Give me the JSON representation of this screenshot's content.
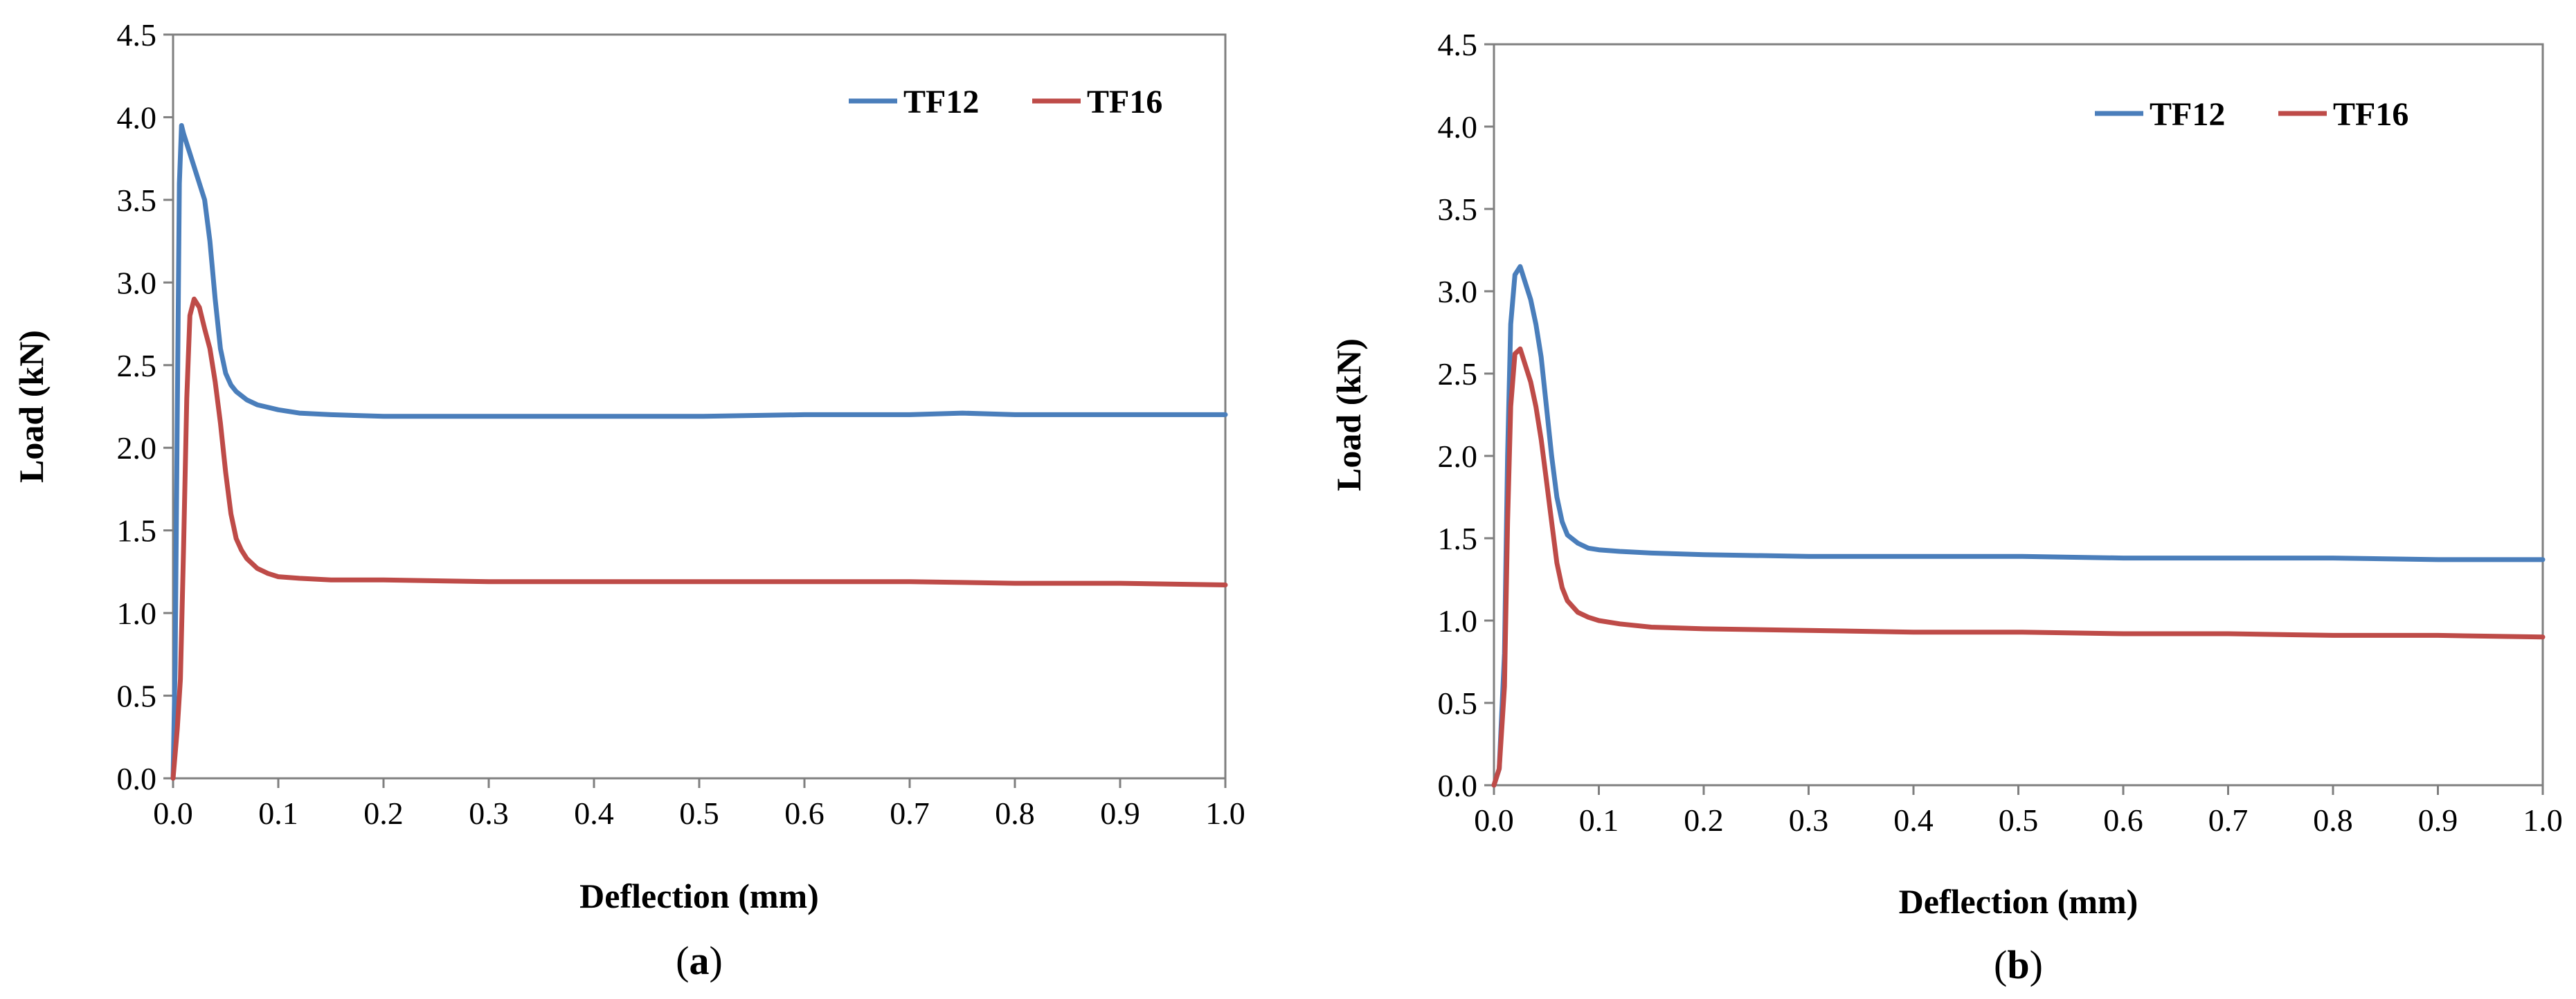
{
  "chart_data": [
    {
      "type": "line",
      "caption": "(a)",
      "caption_letter": "a",
      "xlabel": "Deflection (mm)",
      "ylabel": "Load (kN)",
      "xlim": [
        0,
        1.0
      ],
      "ylim": [
        0,
        4.5
      ],
      "xticks": [
        "0.0",
        "0.1",
        "0.2",
        "0.3",
        "0.4",
        "0.5",
        "0.6",
        "0.7",
        "0.8",
        "0.9",
        "1.0"
      ],
      "yticks": [
        "0.0",
        "0.5",
        "1.0",
        "1.5",
        "2.0",
        "2.5",
        "3.0",
        "3.5",
        "4.0",
        "4.5"
      ],
      "legend_position": "top-right",
      "series": [
        {
          "name": "TF12",
          "color": "#4a7ebb",
          "x": [
            0.0,
            0.002,
            0.004,
            0.006,
            0.008,
            0.01,
            0.015,
            0.02,
            0.025,
            0.03,
            0.035,
            0.04,
            0.045,
            0.05,
            0.055,
            0.06,
            0.07,
            0.08,
            0.1,
            0.12,
            0.15,
            0.2,
            0.3,
            0.4,
            0.5,
            0.6,
            0.7,
            0.75,
            0.8,
            0.9,
            1.0
          ],
          "y": [
            0.0,
            0.7,
            2.2,
            3.6,
            3.95,
            3.9,
            3.8,
            3.7,
            3.6,
            3.5,
            3.25,
            2.9,
            2.6,
            2.45,
            2.38,
            2.34,
            2.29,
            2.26,
            2.23,
            2.21,
            2.2,
            2.19,
            2.19,
            2.19,
            2.19,
            2.2,
            2.2,
            2.21,
            2.2,
            2.2,
            2.2
          ]
        },
        {
          "name": "TF16",
          "color": "#be4b48",
          "x": [
            0.0,
            0.004,
            0.007,
            0.01,
            0.013,
            0.016,
            0.02,
            0.025,
            0.03,
            0.035,
            0.04,
            0.045,
            0.05,
            0.055,
            0.06,
            0.065,
            0.07,
            0.08,
            0.09,
            0.1,
            0.12,
            0.15,
            0.2,
            0.3,
            0.4,
            0.5,
            0.6,
            0.7,
            0.8,
            0.9,
            1.0
          ],
          "y": [
            0.0,
            0.3,
            0.6,
            1.4,
            2.3,
            2.8,
            2.9,
            2.85,
            2.72,
            2.6,
            2.4,
            2.15,
            1.85,
            1.6,
            1.45,
            1.38,
            1.33,
            1.27,
            1.24,
            1.22,
            1.21,
            1.2,
            1.2,
            1.19,
            1.19,
            1.19,
            1.19,
            1.19,
            1.18,
            1.18,
            1.17
          ]
        }
      ]
    },
    {
      "type": "line",
      "caption": "(b)",
      "caption_letter": "b",
      "xlabel": "Deflection (mm)",
      "ylabel": "Load (kN)",
      "xlim": [
        0,
        1.0
      ],
      "ylim": [
        0,
        4.5
      ],
      "xticks": [
        "0.0",
        "0.1",
        "0.2",
        "0.3",
        "0.4",
        "0.5",
        "0.6",
        "0.7",
        "0.8",
        "0.9",
        "1.0"
      ],
      "yticks": [
        "0.0",
        "0.5",
        "1.0",
        "1.5",
        "2.0",
        "2.5",
        "3.0",
        "3.5",
        "4.0",
        "4.5"
      ],
      "legend_position": "top-right",
      "series": [
        {
          "name": "TF12",
          "color": "#4a7ebb",
          "x": [
            0.0,
            0.005,
            0.01,
            0.013,
            0.016,
            0.02,
            0.025,
            0.03,
            0.035,
            0.04,
            0.045,
            0.05,
            0.055,
            0.06,
            0.065,
            0.07,
            0.08,
            0.09,
            0.1,
            0.12,
            0.15,
            0.2,
            0.3,
            0.4,
            0.5,
            0.6,
            0.7,
            0.8,
            0.9,
            1.0
          ],
          "y": [
            0.0,
            0.1,
            0.8,
            2.0,
            2.8,
            3.1,
            3.15,
            3.05,
            2.95,
            2.8,
            2.6,
            2.3,
            2.0,
            1.75,
            1.6,
            1.52,
            1.47,
            1.44,
            1.43,
            1.42,
            1.41,
            1.4,
            1.39,
            1.39,
            1.39,
            1.38,
            1.38,
            1.38,
            1.37,
            1.37
          ]
        },
        {
          "name": "TF16",
          "color": "#be4b48",
          "x": [
            0.0,
            0.005,
            0.01,
            0.013,
            0.016,
            0.02,
            0.025,
            0.03,
            0.035,
            0.04,
            0.045,
            0.05,
            0.055,
            0.06,
            0.065,
            0.07,
            0.08,
            0.09,
            0.1,
            0.12,
            0.15,
            0.2,
            0.3,
            0.4,
            0.5,
            0.6,
            0.7,
            0.8,
            0.9,
            1.0
          ],
          "y": [
            0.0,
            0.1,
            0.6,
            1.6,
            2.3,
            2.62,
            2.65,
            2.55,
            2.45,
            2.3,
            2.1,
            1.85,
            1.6,
            1.35,
            1.2,
            1.12,
            1.05,
            1.02,
            1.0,
            0.98,
            0.96,
            0.95,
            0.94,
            0.93,
            0.93,
            0.92,
            0.92,
            0.91,
            0.91,
            0.9
          ]
        }
      ]
    }
  ]
}
